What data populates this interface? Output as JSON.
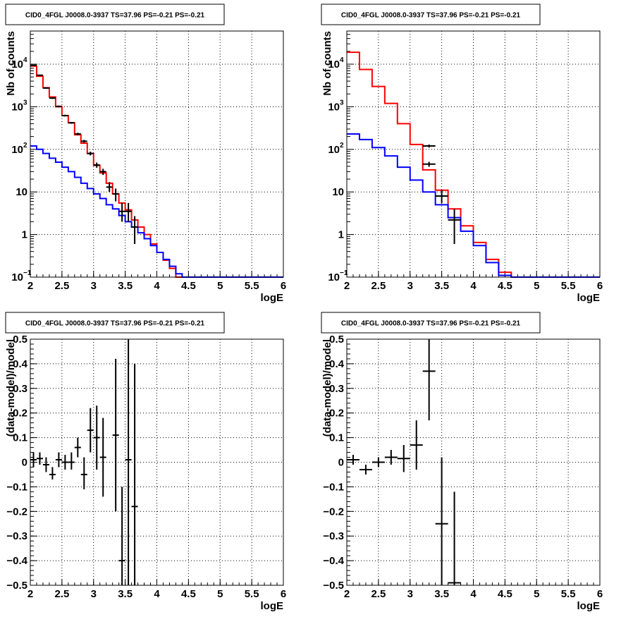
{
  "chart_data": [
    {
      "type": "line",
      "title": "CID0_4FGL J0008.0-3937 TS=37.96 PS=-0.21 PS=-0.21",
      "xlabel": "logE",
      "ylabel": "Nb of counts",
      "xlim": [
        2,
        6
      ],
      "ylim": [
        0.1,
        60000
      ],
      "yscale": "log",
      "grid": true,
      "xticks": [
        "2",
        "2.5",
        "3",
        "3.5",
        "4",
        "4.5",
        "5",
        "5.5",
        "6"
      ],
      "yticks": [
        {
          "value": 0.1,
          "label": "10",
          "exp": "−1"
        },
        {
          "value": 1,
          "label": "1",
          "exp": ""
        },
        {
          "value": 10,
          "label": "10",
          "exp": ""
        },
        {
          "value": 100,
          "label": "10",
          "exp": "2"
        },
        {
          "value": 1000,
          "label": "10",
          "exp": "3"
        },
        {
          "value": 10000,
          "label": "10",
          "exp": "4"
        }
      ],
      "bin_edges": [
        2.0,
        2.1,
        2.2,
        2.3,
        2.4,
        2.5,
        2.6,
        2.7,
        2.8,
        2.9,
        3.0,
        3.1,
        3.2,
        3.3,
        3.4,
        3.5,
        3.6,
        3.7,
        3.8,
        3.9,
        4.0,
        4.1,
        4.2,
        4.3,
        4.4,
        4.5,
        4.6,
        4.7,
        4.8,
        4.9,
        5.0,
        5.1,
        5.2,
        5.3,
        5.4,
        5.5,
        5.6,
        5.7,
        5.8,
        5.9,
        6.0
      ],
      "series": [
        {
          "color": "#ff0000",
          "values": [
            9000,
            5200,
            2800,
            1700,
            1000,
            620,
            420,
            220,
            140,
            80,
            42,
            28,
            16,
            9,
            5.5,
            3.8,
            2.2,
            1.5,
            1.0,
            0.6,
            0.38,
            0.25,
            0.16,
            0.1,
            0.1,
            0.1,
            0.1,
            0.1,
            0.1,
            0.1,
            0.1,
            0.1,
            0.1,
            0.1,
            0.1,
            0.1,
            0.1,
            0.1,
            0.1,
            0.1
          ]
        },
        {
          "color": "#0000ff",
          "values": [
            120,
            100,
            80,
            62,
            50,
            38,
            30,
            22,
            16,
            12,
            9,
            7,
            5,
            4,
            2.8,
            2.0,
            1.5,
            1.1,
            0.8,
            0.55,
            0.38,
            0.26,
            0.18,
            0.12,
            0.1,
            0.1,
            0.1,
            0.1,
            0.1,
            0.1,
            0.1,
            0.1,
            0.1,
            0.1,
            0.1,
            0.1,
            0.1,
            0.1,
            0.1,
            0.1
          ]
        }
      ],
      "points": [
        {
          "x": 2.05,
          "y": 9400,
          "ylo": 9200,
          "yhi": 9600
        },
        {
          "x": 2.15,
          "y": 5500,
          "ylo": 5350,
          "yhi": 5650
        },
        {
          "x": 2.25,
          "y": 2750,
          "ylo": 2650,
          "yhi": 2850
        },
        {
          "x": 2.35,
          "y": 1600,
          "ylo": 1530,
          "yhi": 1670
        },
        {
          "x": 2.45,
          "y": 1020,
          "ylo": 970,
          "yhi": 1070
        },
        {
          "x": 2.55,
          "y": 620,
          "ylo": 590,
          "yhi": 650
        },
        {
          "x": 2.65,
          "y": 420,
          "ylo": 400,
          "yhi": 440
        },
        {
          "x": 2.75,
          "y": 230,
          "ylo": 215,
          "yhi": 245
        },
        {
          "x": 2.85,
          "y": 155,
          "ylo": 143,
          "yhi": 167
        },
        {
          "x": 2.95,
          "y": 80,
          "ylo": 72,
          "yhi": 88
        },
        {
          "x": 3.05,
          "y": 43,
          "ylo": 37,
          "yhi": 49
        },
        {
          "x": 3.15,
          "y": 30,
          "ylo": 25,
          "yhi": 35
        },
        {
          "x": 3.25,
          "y": 13,
          "ylo": 10,
          "yhi": 17
        },
        {
          "x": 3.35,
          "y": 9,
          "ylo": 6,
          "yhi": 12
        },
        {
          "x": 3.45,
          "y": 3.5,
          "ylo": 2,
          "yhi": 5.5
        },
        {
          "x": 3.55,
          "y": 3.5,
          "ylo": 2,
          "yhi": 5.5
        },
        {
          "x": 3.65,
          "y": 1.5,
          "ylo": 0.6,
          "yhi": 2.7
        }
      ]
    },
    {
      "type": "line",
      "title": "CID0_4FGL J0008.0-3937 TS=37.96 PS=-0.21 PS=-0.21",
      "xlabel": "logE",
      "ylabel": "Nb of counts",
      "xlim": [
        2,
        6
      ],
      "ylim": [
        0.1,
        60000
      ],
      "yscale": "log",
      "grid": true,
      "xticks": [
        "2",
        "2.5",
        "3",
        "3.5",
        "4",
        "4.5",
        "5",
        "5.5",
        "6"
      ],
      "yticks": [
        {
          "value": 0.1,
          "label": "10",
          "exp": "−1"
        },
        {
          "value": 1,
          "label": "1",
          "exp": ""
        },
        {
          "value": 10,
          "label": "10",
          "exp": ""
        },
        {
          "value": 100,
          "label": "10",
          "exp": "2"
        },
        {
          "value": 1000,
          "label": "10",
          "exp": "3"
        },
        {
          "value": 10000,
          "label": "10",
          "exp": "4"
        }
      ],
      "bin_edges": [
        2.0,
        2.2,
        2.4,
        2.6,
        2.8,
        3.0,
        3.2,
        3.4,
        3.6,
        3.8,
        4.0,
        4.2,
        4.4,
        4.6,
        4.8,
        5.0,
        5.2,
        5.4,
        5.6,
        5.8,
        6.0
      ],
      "series": [
        {
          "color": "#ff0000",
          "values": [
            19000,
            7500,
            3000,
            1200,
            400,
            130,
            33,
            11,
            4,
            1.6,
            0.65,
            0.26,
            0.13,
            0.1,
            0.1,
            0.1,
            0.1,
            0.1,
            0.1,
            0.1
          ]
        },
        {
          "color": "#0000ff",
          "values": [
            230,
            170,
            110,
            70,
            38,
            19,
            10,
            5,
            2.5,
            1.2,
            0.55,
            0.22,
            0.11,
            0.1,
            0.1,
            0.1,
            0.1,
            0.1,
            0.1,
            0.1
          ]
        }
      ],
      "points": [
        {
          "x": 3.3,
          "y": 120,
          "ylo": 110,
          "yhi": 130
        },
        {
          "x": 3.3,
          "y": 45,
          "ylo": 39,
          "yhi": 51
        },
        {
          "x": 3.5,
          "y": 8,
          "ylo": 5.5,
          "yhi": 11
        },
        {
          "x": 3.7,
          "y": 2.2,
          "ylo": 0.6,
          "yhi": 3.9
        }
      ]
    },
    {
      "type": "scatter",
      "title": "CID0_4FGL J0008.0-3937 TS=37.96 PS=-0.21 PS=-0.21",
      "xlabel": "logE",
      "ylabel": "(data-model)/model",
      "xlim": [
        2,
        6
      ],
      "ylim": [
        -0.5,
        0.5
      ],
      "grid": true,
      "xticks": [
        "2",
        "2.5",
        "3",
        "3.5",
        "4",
        "4.5",
        "5",
        "5.5",
        "6"
      ],
      "yticks": [
        "−0.5",
        "−0.4",
        "−0.3",
        "−0.2",
        "−0.1",
        "0",
        "0.1",
        "0.2",
        "0.3",
        "0.4",
        "0.5"
      ],
      "points": [
        {
          "x": 2.05,
          "y": 0.01,
          "ylo": -0.02,
          "yhi": 0.04
        },
        {
          "x": 2.15,
          "y": 0.015,
          "ylo": -0.01,
          "yhi": 0.04
        },
        {
          "x": 2.25,
          "y": -0.01,
          "ylo": -0.04,
          "yhi": 0.02
        },
        {
          "x": 2.35,
          "y": -0.05,
          "ylo": -0.07,
          "yhi": -0.02
        },
        {
          "x": 2.45,
          "y": 0.01,
          "ylo": -0.02,
          "yhi": 0.04
        },
        {
          "x": 2.55,
          "y": 0.0,
          "ylo": -0.03,
          "yhi": 0.03
        },
        {
          "x": 2.65,
          "y": 0.0,
          "ylo": -0.03,
          "yhi": 0.04
        },
        {
          "x": 2.75,
          "y": 0.06,
          "ylo": 0.02,
          "yhi": 0.1
        },
        {
          "x": 2.85,
          "y": -0.05,
          "ylo": -0.11,
          "yhi": 0.02
        },
        {
          "x": 2.95,
          "y": 0.13,
          "ylo": 0.04,
          "yhi": 0.22
        },
        {
          "x": 3.05,
          "y": 0.1,
          "ylo": -0.03,
          "yhi": 0.23
        },
        {
          "x": 3.15,
          "y": 0.02,
          "ylo": -0.14,
          "yhi": 0.18
        },
        {
          "x": 3.35,
          "y": 0.11,
          "ylo": -0.2,
          "yhi": 0.42
        },
        {
          "x": 3.45,
          "y": -0.4,
          "ylo": -0.5,
          "yhi": -0.1
        },
        {
          "x": 3.55,
          "y": 0.01,
          "ylo": -0.5,
          "yhi": 0.5
        },
        {
          "x": 3.65,
          "y": -0.18,
          "ylo": -0.5,
          "yhi": 0.4
        }
      ]
    },
    {
      "type": "scatter",
      "title": "CID0_4FGL J0008.0-3937 TS=37.96 PS=-0.21 PS=-0.21",
      "xlabel": "logE",
      "ylabel": "(data-model)/model",
      "xlim": [
        2,
        6
      ],
      "ylim": [
        -0.5,
        0.5
      ],
      "grid": true,
      "xticks": [
        "2",
        "2.5",
        "3",
        "3.5",
        "4",
        "4.5",
        "5",
        "5.5",
        "6"
      ],
      "yticks": [
        "−0.5",
        "−0.4",
        "−0.3",
        "−0.2",
        "−0.1",
        "0",
        "0.1",
        "0.2",
        "0.3",
        "0.4",
        "0.5"
      ],
      "points": [
        {
          "x": 2.1,
          "y": 0.01,
          "ylo": -0.01,
          "yhi": 0.03
        },
        {
          "x": 2.3,
          "y": -0.03,
          "ylo": -0.05,
          "yhi": -0.01
        },
        {
          "x": 2.5,
          "y": 0.0,
          "ylo": -0.02,
          "yhi": 0.02
        },
        {
          "x": 2.7,
          "y": 0.02,
          "ylo": -0.01,
          "yhi": 0.05
        },
        {
          "x": 2.9,
          "y": 0.015,
          "ylo": -0.04,
          "yhi": 0.07
        },
        {
          "x": 3.1,
          "y": 0.07,
          "ylo": -0.03,
          "yhi": 0.17
        },
        {
          "x": 3.3,
          "y": 0.37,
          "ylo": 0.17,
          "yhi": 0.5
        },
        {
          "x": 3.5,
          "y": -0.25,
          "ylo": -0.5,
          "yhi": 0.02
        },
        {
          "x": 3.7,
          "y": -0.49,
          "ylo": -0.5,
          "yhi": -0.12
        }
      ]
    }
  ]
}
